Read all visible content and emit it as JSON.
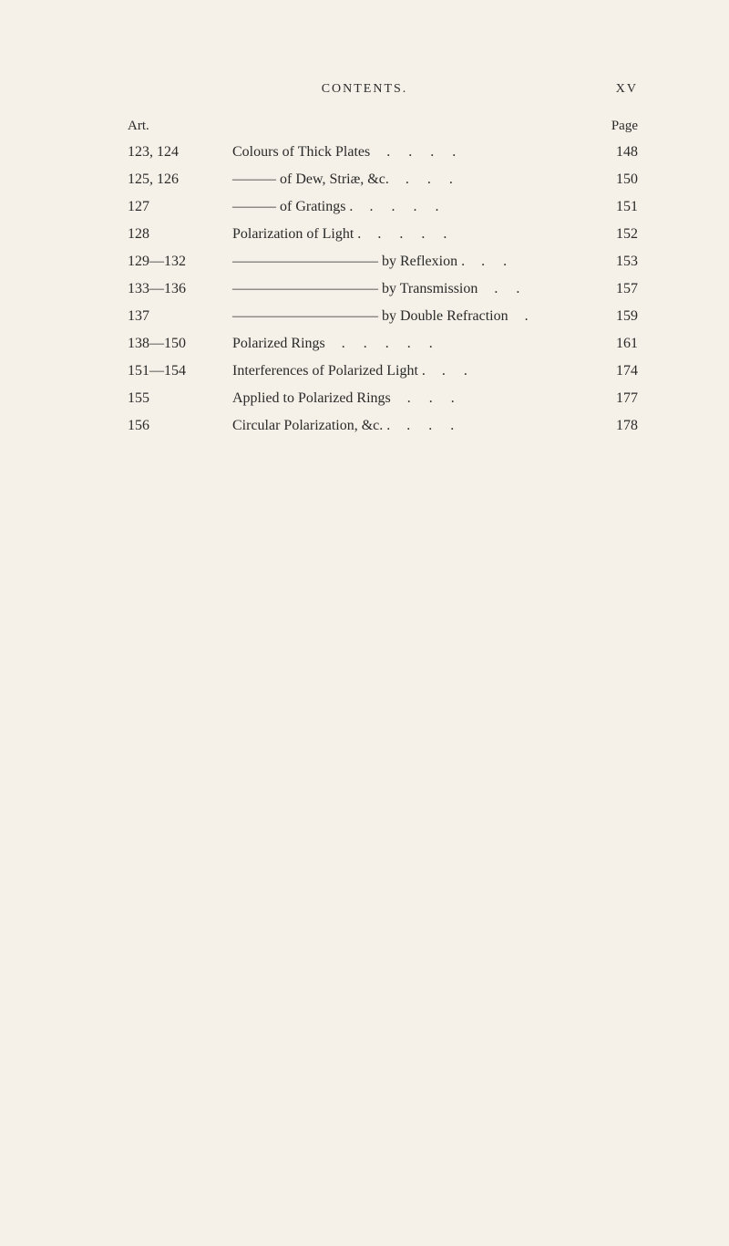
{
  "header": {
    "title": "CONTENTS.",
    "pageNum": "XV"
  },
  "subheader": {
    "left": "Art.",
    "right": "Page"
  },
  "entries": [
    {
      "art": "123, 124",
      "desc": "Colours of Thick Plates",
      "leader": "    .    .    .    .",
      "page": "148"
    },
    {
      "art": "125, 126",
      "desc": "——— of Dew, Striæ, &c.",
      "leader": "    .    .    .",
      "page": "150"
    },
    {
      "art": "127",
      "desc": "——— of Gratings  .",
      "leader": "    .    .    .    .",
      "page": "151"
    },
    {
      "art": "128",
      "desc": "Polarization of Light   .",
      "leader": "    .    .    .    .",
      "page": "152"
    },
    {
      "art": "129—132",
      "desc": "—————————— by Reflexion  .",
      "leader": "   .   .",
      "page": "153"
    },
    {
      "art": "133—136",
      "desc": "—————————— by Transmission",
      "leader": "   .   .",
      "page": "157"
    },
    {
      "art": "137",
      "desc": "—————————— by Double Refraction",
      "leader": "   .",
      "page": "159"
    },
    {
      "art": "138—150",
      "desc": "Polarized Rings",
      "leader": "    .    .    .    .    .",
      "page": "161"
    },
    {
      "art": "151—154",
      "desc": "Interferences of Polarized Light  .",
      "leader": "   .   .",
      "page": "174"
    },
    {
      "art": "155",
      "desc": "Applied to Polarized Rings",
      "leader": "   .   .   .",
      "page": "177"
    },
    {
      "art": "156",
      "desc": "Circular Polarization, &c.    .",
      "leader": "   .   .   .",
      "page": "178"
    }
  ],
  "style": {
    "background_color": "#f5f1e8",
    "text_color": "#2a2a2a",
    "body_fontsize": 16,
    "header_fontsize": 14
  }
}
